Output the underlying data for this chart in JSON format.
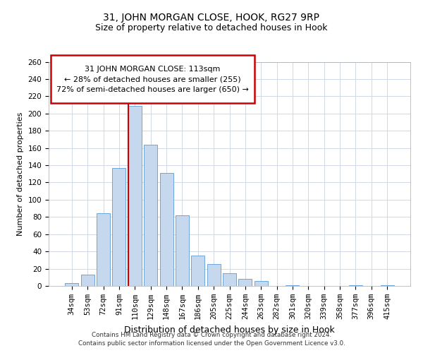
{
  "title": "31, JOHN MORGAN CLOSE, HOOK, RG27 9RP",
  "subtitle": "Size of property relative to detached houses in Hook",
  "xlabel": "Distribution of detached houses by size in Hook",
  "ylabel": "Number of detached properties",
  "bar_labels": [
    "34sqm",
    "53sqm",
    "72sqm",
    "91sqm",
    "110sqm",
    "129sqm",
    "148sqm",
    "167sqm",
    "186sqm",
    "205sqm",
    "225sqm",
    "244sqm",
    "263sqm",
    "282sqm",
    "301sqm",
    "320sqm",
    "339sqm",
    "358sqm",
    "377sqm",
    "396sqm",
    "415sqm"
  ],
  "bar_values": [
    3,
    13,
    84,
    137,
    209,
    164,
    131,
    82,
    35,
    25,
    15,
    8,
    6,
    0,
    1,
    0,
    0,
    0,
    1,
    0,
    1
  ],
  "bar_color": "#c5d8ed",
  "bar_edge_color": "#5b9bd5",
  "vline_x_index": 4,
  "vline_color": "#cc0000",
  "ylim_max": 260,
  "yticks": [
    0,
    20,
    40,
    60,
    80,
    100,
    120,
    140,
    160,
    180,
    200,
    220,
    240,
    260
  ],
  "annotation_text_line1": "31 JOHN MORGAN CLOSE: 113sqm",
  "annotation_text_line2": "← 28% of detached houses are smaller (255)",
  "annotation_text_line3": "72% of semi-detached houses are larger (650) →",
  "footer_text": "Contains HM Land Registry data © Crown copyright and database right 2024.\nContains public sector information licensed under the Open Government Licence v3.0.",
  "background_color": "#ffffff",
  "grid_color": "#d0d8e8",
  "ann_box_edgecolor": "#cc0000",
  "title_fontsize": 10,
  "subtitle_fontsize": 9,
  "ylabel_fontsize": 8,
  "xlabel_fontsize": 9,
  "tick_fontsize": 7.5,
  "ann_fontsize": 8
}
